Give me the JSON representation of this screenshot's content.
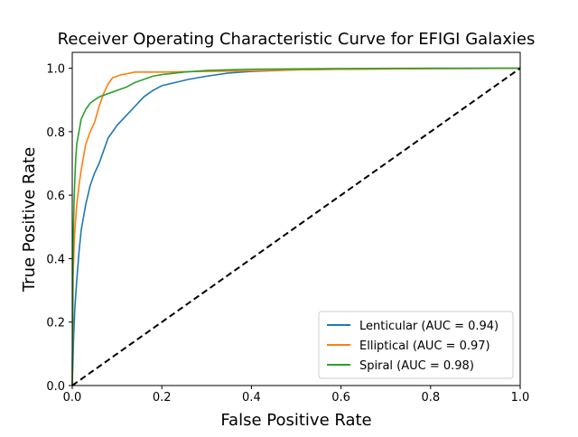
{
  "chart_data": {
    "type": "line",
    "title": "Receiver Operating Characteristic Curve for EFIGI Galaxies",
    "xlabel": "False Positive Rate",
    "ylabel": "True Positive Rate",
    "xlim": [
      0.0,
      1.0
    ],
    "ylim": [
      0.0,
      1.05
    ],
    "xticks": [
      "0.0",
      "0.2",
      "0.4",
      "0.6",
      "0.8",
      "1.0"
    ],
    "yticks": [
      "0.0",
      "0.2",
      "0.4",
      "0.6",
      "0.8",
      "1.0"
    ],
    "grid": false,
    "legend_position": "lower-right",
    "series": [
      {
        "name": "Lenticular (AUC = 0.94)",
        "color": "#1f77b4",
        "style": "solid",
        "x": [
          0.0,
          0.003,
          0.006,
          0.01,
          0.015,
          0.02,
          0.025,
          0.03,
          0.04,
          0.05,
          0.06,
          0.07,
          0.08,
          0.09,
          0.1,
          0.12,
          0.14,
          0.16,
          0.18,
          0.2,
          0.23,
          0.26,
          0.3,
          0.35,
          0.4,
          0.5,
          0.6,
          0.8,
          1.0
        ],
        "y": [
          0.0,
          0.15,
          0.25,
          0.33,
          0.42,
          0.49,
          0.53,
          0.57,
          0.63,
          0.67,
          0.7,
          0.74,
          0.78,
          0.8,
          0.82,
          0.85,
          0.88,
          0.91,
          0.93,
          0.945,
          0.955,
          0.965,
          0.975,
          0.985,
          0.99,
          0.995,
          0.997,
          0.999,
          1.0
        ]
      },
      {
        "name": "Elliptical (AUC = 0.97)",
        "color": "#ff7f0e",
        "style": "solid",
        "x": [
          0.0,
          0.002,
          0.005,
          0.008,
          0.01,
          0.015,
          0.02,
          0.025,
          0.03,
          0.04,
          0.05,
          0.06,
          0.07,
          0.08,
          0.09,
          0.1,
          0.11,
          0.12,
          0.13,
          0.14,
          0.16,
          0.2,
          0.3,
          0.4,
          0.5,
          0.7,
          1.0
        ],
        "y": [
          0.0,
          0.35,
          0.47,
          0.53,
          0.57,
          0.63,
          0.68,
          0.72,
          0.76,
          0.8,
          0.83,
          0.88,
          0.92,
          0.95,
          0.97,
          0.975,
          0.98,
          0.982,
          0.985,
          0.988,
          0.988,
          0.988,
          0.99,
          0.992,
          0.995,
          0.998,
          1.0
        ]
      },
      {
        "name": "Spiral (AUC = 0.98)",
        "color": "#2ca02c",
        "style": "solid",
        "x": [
          0.0,
          0.002,
          0.004,
          0.006,
          0.008,
          0.01,
          0.015,
          0.02,
          0.03,
          0.04,
          0.05,
          0.06,
          0.08,
          0.1,
          0.12,
          0.14,
          0.16,
          0.18,
          0.2,
          0.25,
          0.3,
          0.4,
          0.5,
          0.6,
          0.8,
          1.0
        ],
        "y": [
          0.0,
          0.45,
          0.58,
          0.66,
          0.72,
          0.76,
          0.8,
          0.84,
          0.87,
          0.89,
          0.9,
          0.91,
          0.92,
          0.93,
          0.94,
          0.955,
          0.965,
          0.975,
          0.98,
          0.988,
          0.993,
          0.997,
          0.998,
          0.999,
          1.0,
          1.0
        ]
      },
      {
        "name": "",
        "color": "#000000",
        "style": "dashed",
        "x": [
          0.0,
          1.0
        ],
        "y": [
          0.0,
          1.0
        ]
      }
    ]
  }
}
